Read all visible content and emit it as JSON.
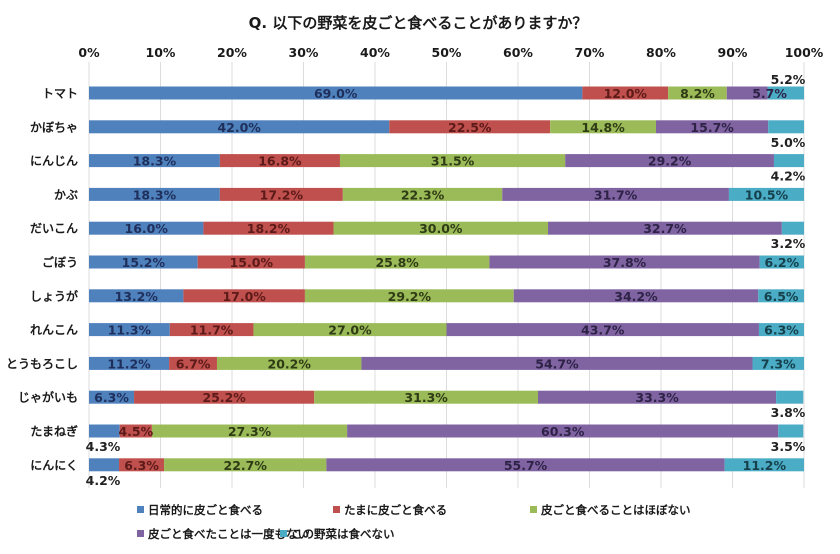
{
  "chart_data": {
    "type": "bar",
    "orientation": "horizontal",
    "stacked": "percent",
    "title": "Q. 以下の野菜を皮ごと食べることがありますか？",
    "xlabel": "",
    "ylabel": "",
    "xlim": [
      0,
      100
    ],
    "x_ticks": [
      "0%",
      "10%",
      "20%",
      "30%",
      "40%",
      "50%",
      "60%",
      "70%",
      "80%",
      "90%",
      "100%"
    ],
    "x_tick_values": [
      0,
      10,
      20,
      30,
      40,
      50,
      60,
      70,
      80,
      90,
      100
    ],
    "grid": true,
    "legend_position": "bottom",
    "categories": [
      "トマト",
      "かぼちゃ",
      "にんじん",
      "かぶ",
      "だいこん",
      "ごぼう",
      "しょうが",
      "れんこん",
      "とうもろこし",
      "じゃがいも",
      "たまねぎ",
      "にんにく"
    ],
    "series": [
      {
        "name": "日常的に皮ごと食べる",
        "color": "#4F81BD",
        "label_color": "#1F2F5C",
        "values": [
          69.0,
          42.0,
          18.3,
          18.3,
          16.0,
          15.2,
          13.2,
          11.3,
          11.2,
          6.3,
          4.3,
          4.2
        ]
      },
      {
        "name": "たまに皮ごと食べる",
        "color": "#C0504D",
        "label_color": "#5C1A18",
        "values": [
          12.0,
          22.5,
          16.8,
          17.2,
          18.2,
          15.0,
          17.0,
          11.7,
          6.7,
          25.2,
          4.5,
          6.3
        ]
      },
      {
        "name": "皮ごと食べることはほぼない",
        "color": "#9BBB59",
        "label_color": "#2E3B14",
        "values": [
          8.2,
          14.8,
          31.5,
          22.3,
          30.0,
          25.8,
          29.2,
          27.0,
          20.2,
          31.3,
          27.3,
          22.7
        ]
      },
      {
        "name": "皮ごと食べたことは一度もない",
        "color": "#8064A2",
        "label_color": "#2E2247",
        "values": [
          5.7,
          15.7,
          29.2,
          31.7,
          32.7,
          37.8,
          34.2,
          43.7,
          54.7,
          33.3,
          60.3,
          55.7
        ]
      },
      {
        "name": "この野菜は食べない",
        "color": "#4BACC6",
        "label_color": "#15404C",
        "values": [
          5.2,
          5.0,
          4.2,
          10.5,
          3.2,
          6.2,
          6.5,
          6.3,
          7.3,
          3.8,
          3.5,
          11.2
        ]
      }
    ],
    "data_labels": [
      [
        "69.0%",
        "12.0%",
        "8.2%",
        "5.7%",
        "5.2%"
      ],
      [
        "42.0%",
        "22.5%",
        "14.8%",
        "15.7%",
        "5.0%"
      ],
      [
        "18.3%",
        "16.8%",
        "31.5%",
        "29.2%",
        "4.2%"
      ],
      [
        "18.3%",
        "17.2%",
        "22.3%",
        "31.7%",
        "10.5%"
      ],
      [
        "16.0%",
        "18.2%",
        "30.0%",
        "32.7%",
        "3.2%"
      ],
      [
        "15.2%",
        "15.0%",
        "25.8%",
        "37.8%",
        "6.2%"
      ],
      [
        "13.2%",
        "17.0%",
        "29.2%",
        "34.2%",
        "6.5%"
      ],
      [
        "11.3%",
        "11.7%",
        "27.0%",
        "43.7%",
        "6.3%"
      ],
      [
        "11.2%",
        "6.7%",
        "20.2%",
        "54.7%",
        "7.3%"
      ],
      [
        "6.3%",
        "25.2%",
        "31.3%",
        "33.3%",
        "3.8%"
      ],
      [
        "4.3%",
        "4.5%",
        "27.3%",
        "60.3%",
        "3.5%"
      ],
      [
        "4.2%",
        "6.3%",
        "22.7%",
        "55.7%",
        "11.2%"
      ]
    ],
    "outside_labels": [
      {
        "row": 0,
        "series": 4,
        "where": "above"
      },
      {
        "row": 1,
        "series": 4,
        "where": "below"
      },
      {
        "row": 2,
        "series": 4,
        "where": "below"
      },
      {
        "row": 4,
        "series": 4,
        "where": "below"
      },
      {
        "row": 9,
        "series": 4,
        "where": "below"
      },
      {
        "row": 10,
        "series": 4,
        "where": "below"
      },
      {
        "row": 10,
        "series": 0,
        "where": "below"
      },
      {
        "row": 11,
        "series": 0,
        "where": "below"
      }
    ]
  }
}
